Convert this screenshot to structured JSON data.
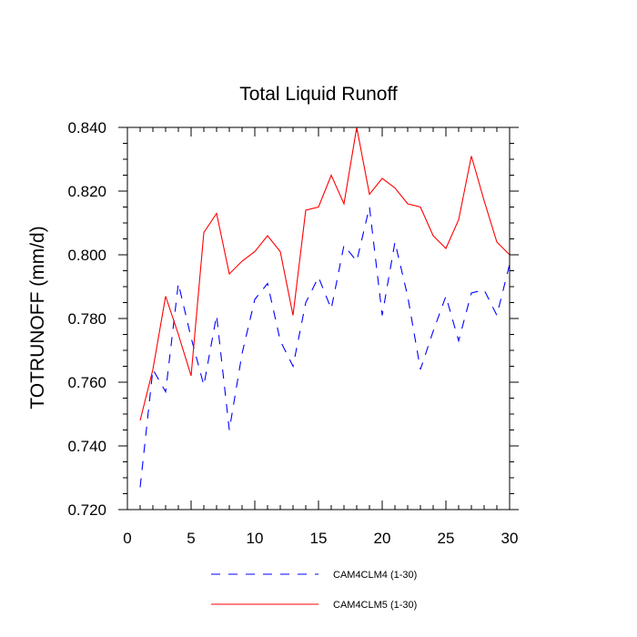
{
  "chart_data": {
    "type": "line",
    "title": "Total Liquid Runoff",
    "xlabel": "",
    "ylabel": "TOTRUNOFF  (mm/d)",
    "xlim": [
      0,
      30
    ],
    "ylim": [
      0.72,
      0.84
    ],
    "x_ticks": [
      0,
      5,
      10,
      15,
      20,
      25,
      30
    ],
    "x_tick_labels": [
      "0",
      "5",
      "10",
      "15",
      "20",
      "25",
      "30"
    ],
    "y_ticks": [
      0.72,
      0.74,
      0.76,
      0.78,
      0.8,
      0.82,
      0.84
    ],
    "y_tick_labels": [
      "0.720",
      "0.740",
      "0.760",
      "0.780",
      "0.800",
      "0.820",
      "0.840"
    ],
    "grid": false,
    "legend_position": "bottom-center",
    "x": [
      1,
      2,
      3,
      4,
      5,
      6,
      7,
      8,
      9,
      10,
      11,
      12,
      13,
      14,
      15,
      16,
      17,
      18,
      19,
      20,
      21,
      22,
      23,
      24,
      25,
      26,
      27,
      28,
      29,
      30
    ],
    "series": [
      {
        "name": "CAM4CLM4 (1-30)",
        "color": "#0000ff",
        "dash": "dashed",
        "values": [
          0.727,
          0.764,
          0.757,
          0.791,
          0.774,
          0.759,
          0.781,
          0.745,
          0.769,
          0.786,
          0.791,
          0.773,
          0.765,
          0.785,
          0.793,
          0.783,
          0.803,
          0.798,
          0.815,
          0.781,
          0.804,
          0.787,
          0.764,
          0.776,
          0.787,
          0.773,
          0.788,
          0.789,
          0.781,
          0.797
        ]
      },
      {
        "name": "CAM4CLM5 (1-30)",
        "color": "#ff0000",
        "dash": "solid",
        "values": [
          0.748,
          0.764,
          0.787,
          0.775,
          0.762,
          0.807,
          0.813,
          0.794,
          0.798,
          0.801,
          0.806,
          0.801,
          0.781,
          0.814,
          0.815,
          0.825,
          0.816,
          0.84,
          0.819,
          0.824,
          0.821,
          0.816,
          0.815,
          0.806,
          0.802,
          0.811,
          0.831,
          0.817,
          0.804,
          0.8
        ]
      }
    ]
  }
}
